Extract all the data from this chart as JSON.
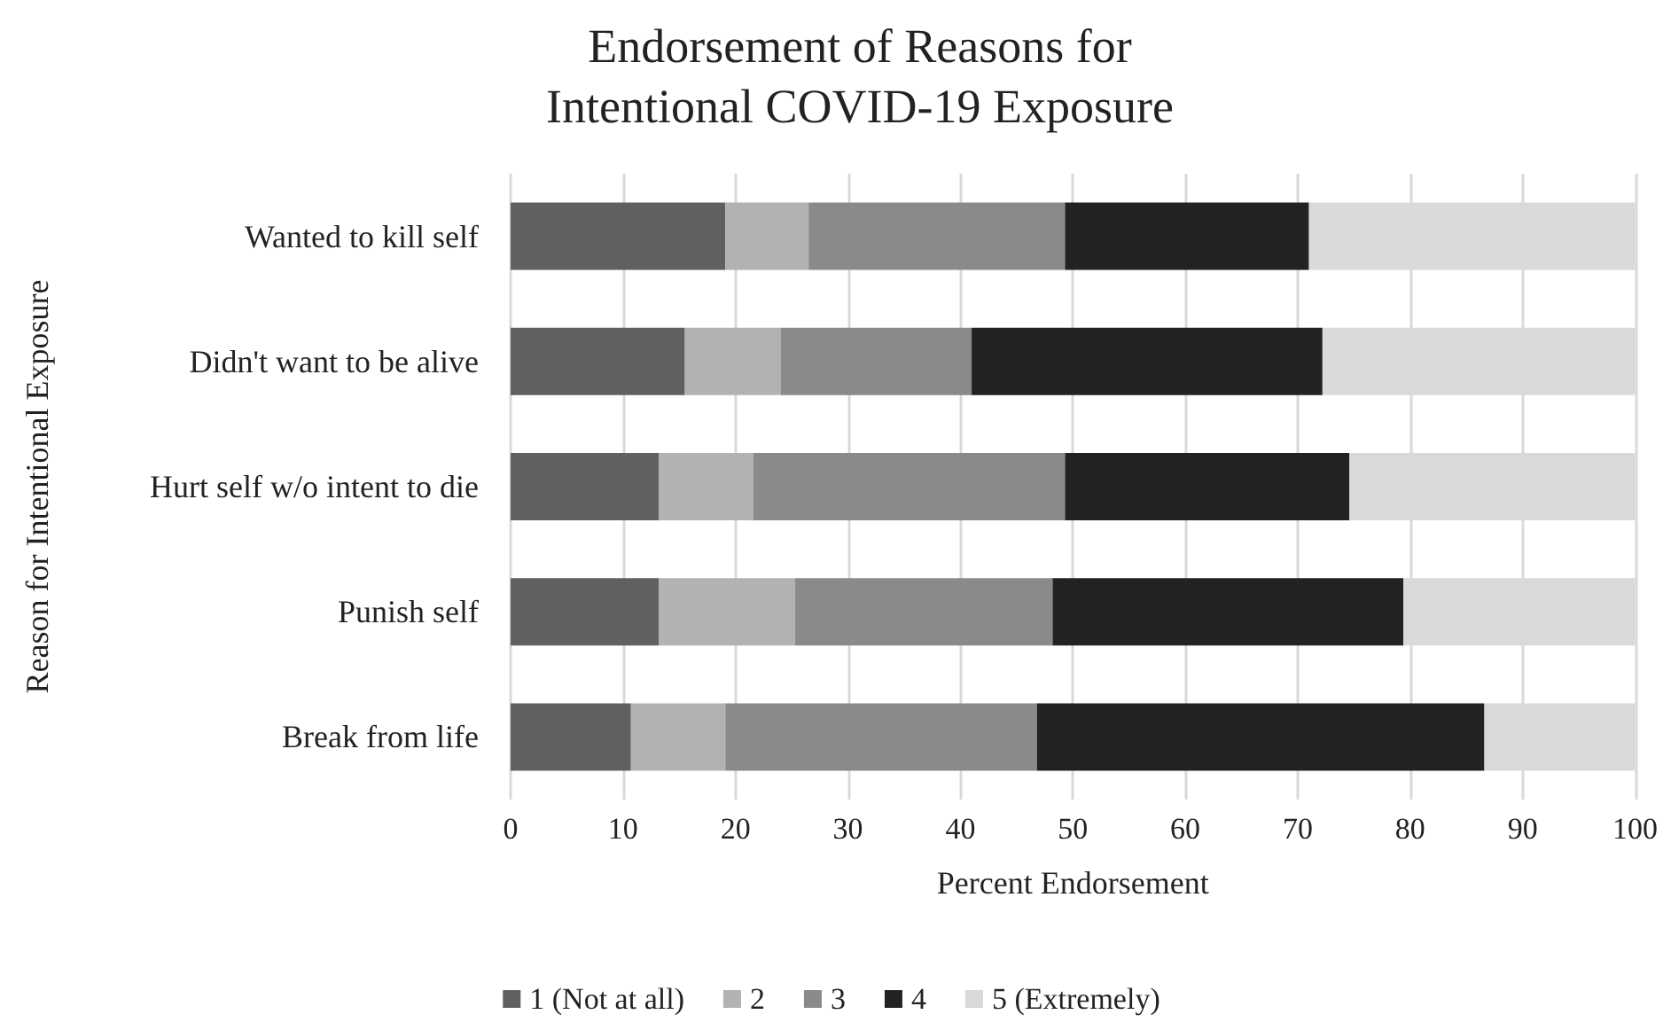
{
  "chart_data": {
    "type": "bar",
    "orientation": "horizontal",
    "stacked": true,
    "title": "Endorsement of Reasons for\nIntentional COVID-19 Exposure",
    "xlabel": "Percent Endorsement",
    "ylabel": "Reason for Intentional Exposure",
    "categories": [
      "Wanted to kill self",
      "Didn't want to be alive",
      "Hurt self w/o intent to die",
      "Punish self",
      "Break from life"
    ],
    "series": [
      {
        "name": "1 (Not at all)",
        "color": "#606060",
        "values": [
          19.1,
          15.5,
          13.2,
          13.2,
          10.7
        ]
      },
      {
        "name": "2",
        "color": "#b2b2b2",
        "values": [
          7.4,
          8.5,
          8.4,
          12.1,
          8.4
        ]
      },
      {
        "name": "3",
        "color": "#8a8a8a",
        "values": [
          22.8,
          17.0,
          27.7,
          22.9,
          27.7
        ]
      },
      {
        "name": "4",
        "color": "#222222",
        "values": [
          21.7,
          31.2,
          25.3,
          31.2,
          39.8
        ]
      },
      {
        "name": "5 (Extremely)",
        "color": "#d9d9d9",
        "values": [
          29.0,
          27.8,
          25.4,
          20.6,
          13.4
        ]
      }
    ],
    "xlim": [
      0,
      100
    ],
    "xticks": [
      0,
      10,
      20,
      30,
      40,
      50,
      60,
      70,
      80,
      90,
      100
    ],
    "grid": "x",
    "legend": "bottom"
  }
}
